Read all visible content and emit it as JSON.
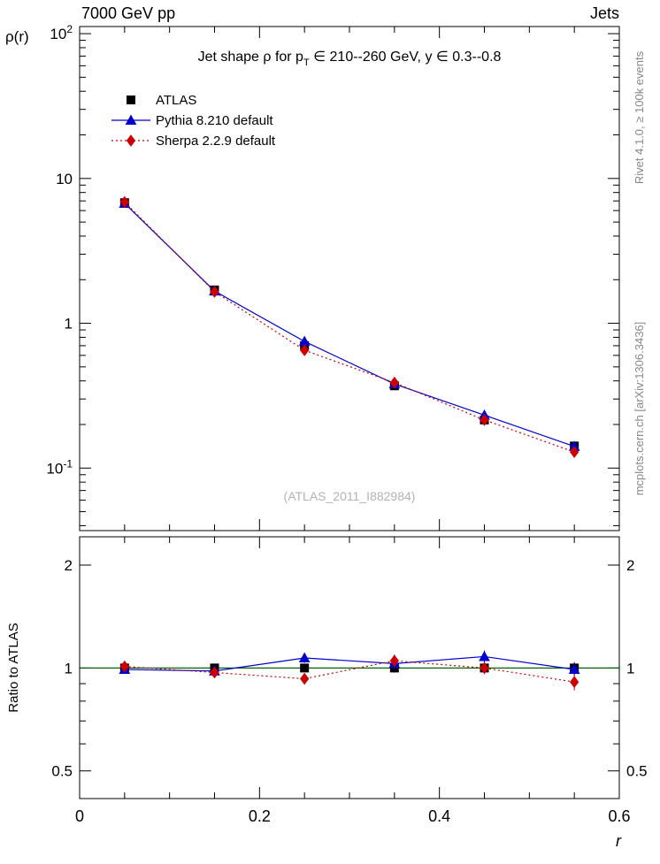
{
  "header": {
    "left_title": "7000 GeV pp",
    "right_title": "Jets"
  },
  "side_notes": {
    "top": "Rivet 4.1.0, ≥ 100k events",
    "bottom": "mcplots.cern.ch [arXiv:1306.3436]"
  },
  "watermark": "(ATLAS_2011_I882984)",
  "colors": {
    "atlas": "#000000",
    "pythia_blue": "#0000cc",
    "sherpa_red": "#cc0000",
    "reference_green": "#006400",
    "muted_text": "#888888",
    "watermark_gray": "#b3b3b3",
    "frame": "#000000"
  },
  "chart_data": {
    "type": "line",
    "title": "Jet shape ρ for p_T ∈ 210--260 GeV, y ∈ 0.3--0.8",
    "title_parts": {
      "main": "Jet shape  ρ for p",
      "sub": "T",
      "rest": " ∈ 210--260 GeV, y ∈ 0.3--0.8"
    },
    "ylabel": "ρ(r)",
    "xlabel": "r",
    "ratio_ylabel": "Ratio to ATLAS",
    "x_axis": {
      "range": [
        0,
        0.6
      ],
      "major_ticks": [
        0,
        0.2,
        0.4,
        0.6
      ],
      "tick_labels": [
        "0",
        "0.2",
        "0.4",
        "0.6"
      ],
      "minor_step": 0.05
    },
    "y_axis_main": {
      "scale": "log",
      "range": [
        0.037,
        112
      ],
      "major_ticks": [
        100,
        10,
        1,
        0.1
      ],
      "tick_labels": [
        {
          "t": "10",
          "sup": "2"
        },
        {
          "t": "10"
        },
        {
          "t": "1"
        },
        {
          "t": "10",
          "sup": "-1"
        }
      ]
    },
    "y_axis_ratio": {
      "scale": "log",
      "range": [
        0.415,
        2.42
      ],
      "major_ticks": [
        2,
        1,
        0.5
      ],
      "tick_labels": [
        "2",
        "1",
        "0.5"
      ]
    },
    "x": [
      0.05,
      0.15,
      0.25,
      0.35,
      0.45,
      0.55
    ],
    "series": [
      {
        "name": "ATLAS",
        "marker": "square",
        "color": "#000000",
        "line": "none",
        "values": [
          6.8,
          1.7,
          0.7,
          0.37,
          0.215,
          0.142
        ],
        "errors": [
          0.14,
          0.04,
          0.018,
          0.011,
          0.007,
          0.006
        ],
        "ratio": [
          1,
          1,
          1,
          1,
          1,
          1
        ],
        "ratio_err": [
          0.02,
          0.02,
          0.025,
          0.03,
          0.03,
          0.04
        ]
      },
      {
        "name": "Pythia 8.210 default",
        "marker": "triangle",
        "color": "#0000cc",
        "line": "solid",
        "values": [
          6.73,
          1.67,
          0.749,
          0.381,
          0.232,
          0.141
        ],
        "errors": [
          0.05,
          0.015,
          0.008,
          0.005,
          0.004,
          0.003
        ],
        "ratio": [
          0.99,
          0.98,
          1.07,
          1.03,
          1.08,
          0.99
        ],
        "ratio_err": [
          0.02,
          0.025,
          0.035,
          0.035,
          0.045,
          0.04
        ]
      },
      {
        "name": "Sherpa 2.2.9 default",
        "marker": "diamond",
        "color": "#cc0000",
        "line": "dotted",
        "values": [
          6.87,
          1.65,
          0.651,
          0.389,
          0.215,
          0.129
        ],
        "errors": [
          0.05,
          0.015,
          0.008,
          0.005,
          0.004,
          0.003
        ],
        "ratio": [
          1.01,
          0.97,
          0.93,
          1.05,
          1.0,
          0.91
        ],
        "ratio_err": [
          0.025,
          0.03,
          0.035,
          0.045,
          0.04,
          0.05
        ]
      }
    ]
  }
}
